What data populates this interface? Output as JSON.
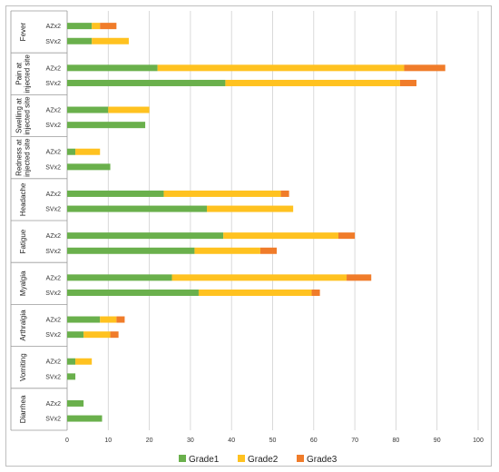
{
  "chart_data": {
    "type": "bar",
    "orientation": "horizontal",
    "stacked": true,
    "groups": [
      {
        "label_lines": [
          "Fever"
        ],
        "rows": [
          {
            "label": "AZx2",
            "values": [
              6,
              2,
              4
            ]
          },
          {
            "label": "SVx2",
            "values": [
              6,
              9,
              0
            ]
          }
        ]
      },
      {
        "label_lines": [
          "Pain at",
          "injected site"
        ],
        "rows": [
          {
            "label": "AZx2",
            "values": [
              22,
              60,
              10
            ]
          },
          {
            "label": "SVx2",
            "values": [
              38.5,
              42.5,
              4
            ]
          }
        ]
      },
      {
        "label_lines": [
          "Swelling at",
          "injected site"
        ],
        "rows": [
          {
            "label": "AZx2",
            "values": [
              10,
              10,
              0
            ]
          },
          {
            "label": "SVx2",
            "values": [
              19,
              0,
              0
            ]
          }
        ]
      },
      {
        "label_lines": [
          "Redness at",
          "injected site"
        ],
        "rows": [
          {
            "label": "AZx2",
            "values": [
              2,
              6,
              0
            ]
          },
          {
            "label": "SVx2",
            "values": [
              10.5,
              0,
              0
            ]
          }
        ]
      },
      {
        "label_lines": [
          "Headache"
        ],
        "rows": [
          {
            "label": "AZx2",
            "values": [
              23.5,
              28.5,
              2
            ]
          },
          {
            "label": "SVx2",
            "values": [
              34,
              21,
              0
            ]
          }
        ]
      },
      {
        "label_lines": [
          "Fatigue"
        ],
        "rows": [
          {
            "label": "AZx2",
            "values": [
              38,
              28,
              4
            ]
          },
          {
            "label": "SVx2",
            "values": [
              31,
              16,
              4
            ]
          }
        ]
      },
      {
        "label_lines": [
          "Myalgia"
        ],
        "rows": [
          {
            "label": "AZx2",
            "values": [
              25.5,
              42.5,
              6
            ]
          },
          {
            "label": "SVx2",
            "values": [
              32,
              27.5,
              2
            ]
          }
        ]
      },
      {
        "label_lines": [
          "Arthralgia"
        ],
        "rows": [
          {
            "label": "AZx2",
            "values": [
              8,
              4,
              2
            ]
          },
          {
            "label": "SVx2",
            "values": [
              4,
              6.5,
              2
            ]
          }
        ]
      },
      {
        "label_lines": [
          "Vomiting"
        ],
        "rows": [
          {
            "label": "AZx2",
            "values": [
              2,
              4,
              0
            ]
          },
          {
            "label": "SVx2",
            "values": [
              2,
              0,
              0
            ]
          }
        ]
      },
      {
        "label_lines": [
          "Diarrhea"
        ],
        "rows": [
          {
            "label": "AZx2",
            "values": [
              4,
              0,
              0
            ]
          },
          {
            "label": "SVx2",
            "values": [
              8.5,
              0,
              0
            ]
          }
        ]
      }
    ],
    "series": [
      {
        "name": "Grade1",
        "color": "#6ab04c"
      },
      {
        "name": "Grade2",
        "color": "#ffc220"
      },
      {
        "name": "Grade3",
        "color": "#f07c2a"
      }
    ],
    "x_ticks": [
      "0",
      "10",
      "20",
      "30",
      "40",
      "50",
      "60",
      "70",
      "80",
      "90",
      "100"
    ],
    "xlim": [
      0,
      100
    ],
    "grid": true,
    "legend_position": "bottom"
  }
}
